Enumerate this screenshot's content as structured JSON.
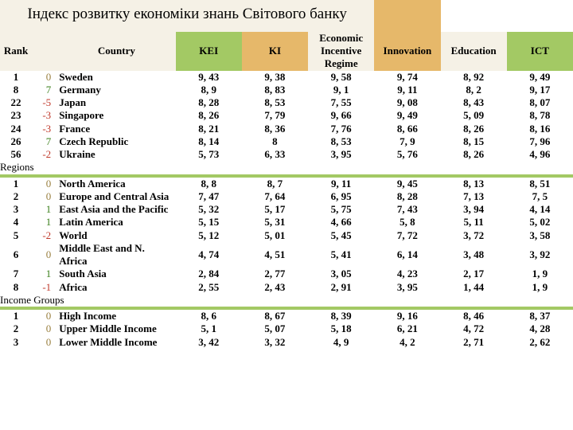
{
  "title": "Індекс розвитку економіки знань Світового банку",
  "header_colors": {
    "title_bg": "#f5f1e6",
    "accent_top": "#e6b86a",
    "accent_header": "#a3c964",
    "blank_bg": "#ffffff",
    "section_bg": "#ffffff"
  },
  "columns": {
    "rank": "Rank",
    "country": "Country",
    "kei": "KEI",
    "ki": "KI",
    "eir": "Economic Incentive Regime",
    "innov": "Innovation",
    "edu": "Education",
    "ict": "ICT"
  },
  "countries": [
    {
      "rank": "1",
      "delta": "0",
      "dclass": "zero",
      "name": "Sweden",
      "kei": "9, 43",
      "ki": "9, 38",
      "eir": "9, 58",
      "innov": "9, 74",
      "edu": "8, 92",
      "ict": "9, 49"
    },
    {
      "rank": "8",
      "delta": "7",
      "dclass": "green",
      "name": "Germany",
      "kei": "8, 9",
      "ki": "8, 83",
      "eir": "9, 1",
      "innov": "9, 11",
      "edu": "8, 2",
      "ict": "9, 17"
    },
    {
      "rank": "22",
      "delta": "-5",
      "dclass": "red",
      "name": "Japan",
      "kei": "8, 28",
      "ki": "8, 53",
      "eir": "7, 55",
      "innov": "9, 08",
      "edu": "8, 43",
      "ict": "8, 07"
    },
    {
      "rank": "23",
      "delta": "-3",
      "dclass": "red",
      "name": "Singapore",
      "kei": "8, 26",
      "ki": "7, 79",
      "eir": "9, 66",
      "innov": "9, 49",
      "edu": "5, 09",
      "ict": "8, 78"
    },
    {
      "rank": "24",
      "delta": "-3",
      "dclass": "red",
      "name": "France",
      "kei": "8, 21",
      "ki": "8, 36",
      "eir": "7, 76",
      "innov": "8, 66",
      "edu": "8, 26",
      "ict": "8, 16"
    },
    {
      "rank": "26",
      "delta": "7",
      "dclass": "green",
      "name": "Czech Republic",
      "kei": "8, 14",
      "ki": "8",
      "eir": "8, 53",
      "innov": "7, 9",
      "edu": "8, 15",
      "ict": "7, 96"
    },
    {
      "rank": "56",
      "delta": "-2",
      "dclass": "red",
      "name": "Ukraine",
      "kei": "5, 73",
      "ki": "6, 33",
      "eir": "3, 95",
      "innov": "5, 76",
      "edu": "8, 26",
      "ict": "4, 96"
    }
  ],
  "sections": [
    {
      "label": "Regions",
      "rows": [
        {
          "rank": "1",
          "delta": "0",
          "dclass": "zero",
          "name": "North America",
          "kei": "8, 8",
          "ki": "8, 7",
          "eir": "9, 11",
          "innov": "9, 45",
          "edu": "8, 13",
          "ict": "8, 51"
        },
        {
          "rank": "2",
          "delta": "0",
          "dclass": "zero",
          "name": "Europe and Central Asia",
          "kei": "7, 47",
          "ki": "7, 64",
          "eir": "6, 95",
          "innov": "8, 28",
          "edu": "7, 13",
          "ict": "7, 5"
        },
        {
          "rank": "3",
          "delta": "1",
          "dclass": "green",
          "name": "East Asia and the Pacific",
          "kei": "5, 32",
          "ki": "5, 17",
          "eir": "5, 75",
          "innov": "7, 43",
          "edu": "3, 94",
          "ict": "4, 14"
        },
        {
          "rank": "4",
          "delta": "1",
          "dclass": "green",
          "name": "Latin America",
          "kei": "5, 15",
          "ki": "5, 31",
          "eir": "4, 66",
          "innov": "5, 8",
          "edu": "5, 11",
          "ict": "5, 02"
        },
        {
          "rank": "5",
          "delta": "-2",
          "dclass": "red",
          "name": "World",
          "kei": "5, 12",
          "ki": "5, 01",
          "eir": "5, 45",
          "innov": "7, 72",
          "edu": "3, 72",
          "ict": "3, 58"
        },
        {
          "rank": "6",
          "delta": "0",
          "dclass": "zero",
          "name": "Middle East and N. Africa",
          "kei": "4, 74",
          "ki": "4, 51",
          "eir": "5, 41",
          "innov": "6, 14",
          "edu": "3, 48",
          "ict": "3, 92"
        },
        {
          "rank": "7",
          "delta": "1",
          "dclass": "green",
          "name": "South Asia",
          "kei": "2, 84",
          "ki": "2, 77",
          "eir": "3, 05",
          "innov": "4, 23",
          "edu": "2, 17",
          "ict": "1, 9"
        },
        {
          "rank": "8",
          "delta": "-1",
          "dclass": "red",
          "name": "Africa",
          "kei": "2, 55",
          "ki": "2, 43",
          "eir": "2, 91",
          "innov": "3, 95",
          "edu": "1, 44",
          "ict": "1, 9"
        }
      ]
    },
    {
      "label": "Income Groups",
      "rows": [
        {
          "rank": "1",
          "delta": "0",
          "dclass": "zero",
          "name": "High Income",
          "kei": "8, 6",
          "ki": "8, 67",
          "eir": "8, 39",
          "innov": "9, 16",
          "edu": "8, 46",
          "ict": "8, 37"
        },
        {
          "rank": "2",
          "delta": "0",
          "dclass": "zero",
          "name": "Upper Middle Income",
          "kei": "5, 1",
          "ki": "5, 07",
          "eir": "5, 18",
          "innov": "6, 21",
          "edu": "4, 72",
          "ict": "4, 28"
        },
        {
          "rank": "3",
          "delta": "0",
          "dclass": "zero",
          "name": "Lower Middle Income",
          "kei": "3, 42",
          "ki": "3, 32",
          "eir": "4, 9",
          "innov": "4, 2",
          "edu": "2, 71",
          "ict": "2, 62"
        }
      ]
    }
  ]
}
